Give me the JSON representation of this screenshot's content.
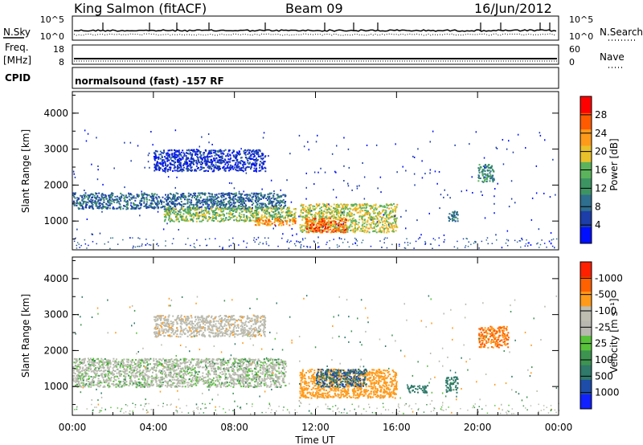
{
  "header": {
    "station": "King Salmon (fitACF)",
    "beam": "Beam 09",
    "date": "16/Jun/2012"
  },
  "summary_panels": {
    "nsky_label": "N.Sky",
    "nsearch_label": "N.Search",
    "noise_ticks_left": [
      "10^5",
      "10^0"
    ],
    "noise_ticks_right": [
      "10^5",
      "10^0"
    ],
    "freq_label_1": "Freq.",
    "freq_label_2": "[MHz]",
    "freq_ticks": [
      "18",
      "8"
    ],
    "nave_label": "Nave",
    "nave_ticks": [
      "60",
      "0"
    ],
    "cpid_label": "CPID",
    "cpid_text": "normalsound (fast) -157 RF"
  },
  "chart_data": [
    {
      "type": "heatmap",
      "panel": "power",
      "ylabel": "Slant Range [km]",
      "xlabel": "",
      "ylim": [
        200,
        4600
      ],
      "xlim": [
        0,
        24
      ],
      "y_ticks": [
        "1000",
        "2000",
        "3000",
        "4000"
      ],
      "colorbar": {
        "label": "Power [dB]",
        "ticks": [
          "4",
          "8",
          "12",
          "16",
          "20",
          "24",
          "28"
        ],
        "colors": [
          "#0010ff",
          "#1d3da8",
          "#2e6e8e",
          "#3d9463",
          "#5bb35b",
          "#e9c12a",
          "#ff9a1a",
          "#ff5a00",
          "#ff0000"
        ]
      },
      "echo_regions": [
        {
          "t_start": 0.0,
          "t_end": 10.5,
          "range_low": 1350,
          "range_high": 1800,
          "power_db": 10
        },
        {
          "t_start": 4.5,
          "t_end": 11.0,
          "range_low": 1000,
          "range_high": 1400,
          "power_db": 18
        },
        {
          "t_start": 9.0,
          "t_end": 11.0,
          "range_low": 900,
          "range_high": 1100,
          "power_db": 26
        },
        {
          "t_start": 11.2,
          "t_end": 16.0,
          "range_low": 700,
          "range_high": 1500,
          "power_db": 20
        },
        {
          "t_start": 11.5,
          "t_end": 13.5,
          "range_low": 700,
          "range_high": 1100,
          "power_db": 28
        },
        {
          "t_start": 4.0,
          "t_end": 9.5,
          "range_low": 2400,
          "range_high": 3000,
          "power_db": 6
        },
        {
          "t_start": 18.5,
          "t_end": 19.0,
          "range_low": 1000,
          "range_high": 1300,
          "power_db": 12
        },
        {
          "t_start": 20.0,
          "t_end": 20.8,
          "range_low": 2100,
          "range_high": 2600,
          "power_db": 14
        }
      ]
    },
    {
      "type": "heatmap",
      "panel": "velocity",
      "ylabel": "Slant Range [km]",
      "xlabel": "Time UT",
      "ylim": [
        200,
        4600
      ],
      "xlim": [
        0,
        24
      ],
      "x_ticks": [
        "00:00",
        "04:00",
        "08:00",
        "12:00",
        "16:00",
        "20:00",
        "00:00"
      ],
      "y_ticks": [
        "1000",
        "2000",
        "3000",
        "4000"
      ],
      "colorbar": {
        "label": "Velocity [m s⁻¹]",
        "ticks": [
          "1000",
          "500",
          "100",
          "25",
          "-25",
          "-100",
          "-500",
          "-1000"
        ],
        "colors": [
          "#1020ff",
          "#1d4da8",
          "#2f7a6a",
          "#3d9450",
          "#58c23a",
          "#b8b8b0",
          "#bdbdb0",
          "#ff9a1a",
          "#ff6000",
          "#ff2000"
        ]
      },
      "echo_regions": [
        {
          "t_start": 0.0,
          "t_end": 10.5,
          "range_low": 1000,
          "range_high": 1800,
          "velocity": 0
        },
        {
          "t_start": 11.2,
          "t_end": 16.0,
          "range_low": 700,
          "range_high": 1500,
          "velocity": -200
        },
        {
          "t_start": 12.0,
          "t_end": 14.5,
          "range_low": 1000,
          "range_high": 1500,
          "velocity": 300
        },
        {
          "t_start": 4.0,
          "t_end": 9.5,
          "range_low": 2400,
          "range_high": 3000,
          "velocity": -50
        },
        {
          "t_start": 18.4,
          "t_end": 19.0,
          "range_low": 850,
          "range_high": 1300,
          "velocity": 150
        },
        {
          "t_start": 16.5,
          "t_end": 17.5,
          "range_low": 850,
          "range_high": 1050,
          "velocity": 200
        },
        {
          "t_start": 20.0,
          "t_end": 21.5,
          "range_low": 2100,
          "range_high": 2700,
          "velocity": -300
        }
      ]
    }
  ]
}
